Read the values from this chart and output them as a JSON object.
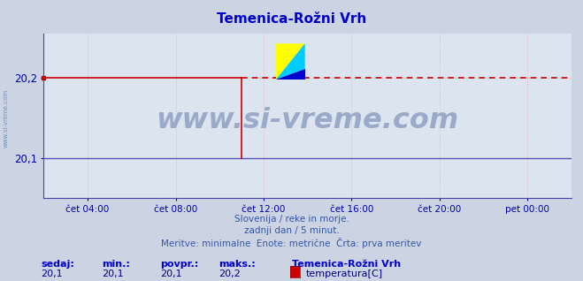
{
  "title": "Temenica-Rožni Vrh",
  "bg_color": "#ccd4e4",
  "plot_bg_color": "#dce4f0",
  "grid_color_h": "#ff8888",
  "grid_color_v": "#ff8888",
  "title_color": "#0000cc",
  "axis_color": "#4444aa",
  "tick_color": "#0000aa",
  "ylim": [
    20.05,
    20.255
  ],
  "yticks": [
    20.1,
    20.2
  ],
  "ytick_labels": [
    "20,1",
    "20,2"
  ],
  "xlim": [
    0,
    288
  ],
  "xtick_positions": [
    24,
    72,
    120,
    168,
    216,
    264
  ],
  "xtick_labels": [
    "čet 04:00",
    "čet 08:00",
    "čet 12:00",
    "čet 16:00",
    "čet 20:00",
    "pet 00:00"
  ],
  "line_color_solid": "#cc0000",
  "line_color_dashed": "#cc0000",
  "line_width": 1.2,
  "subtitle_lines": [
    "Slovenija / reke in morje.",
    "zadnji dan / 5 minut.",
    "Meritve: minimalne  Enote: metrične  Črta: prva meritev"
  ],
  "subtitle_color": "#3355aa",
  "footer_labels": [
    "sedaj:",
    "min.:",
    "povpr.:",
    "maks.:"
  ],
  "footer_values": [
    "20,1",
    "20,1",
    "20,1",
    "20,2"
  ],
  "footer_station": "Temenica-Rožni Vrh",
  "footer_series": "temperatura[C]",
  "footer_color": "#0000cc",
  "footer_value_color": "#000088",
  "watermark": "www.si-vreme.com",
  "watermark_color": "#9aaac8",
  "left_label": "www.si-vreme.com",
  "left_label_color": "#7090b8",
  "solid_end_x": 108,
  "data_value_high": 20.2,
  "data_value_low": 20.1,
  "bottom_line_color": "#5555bb",
  "arrow_color": "#cc0000"
}
